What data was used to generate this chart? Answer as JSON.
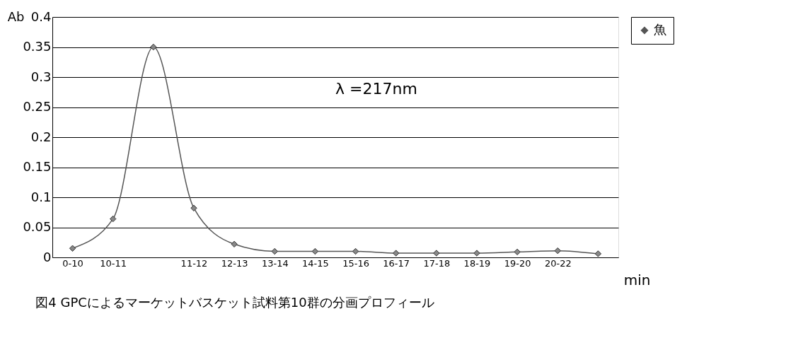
{
  "chart_data": {
    "type": "line",
    "title": "図4 GPCによるマーケットバスケット試料第10群の分画プロフィール",
    "xlabel": "min",
    "ylabel": "Ab",
    "categories": [
      "0-10",
      "10-11",
      null,
      "11-12",
      "12-13",
      "13-14",
      "14-15",
      "15-16",
      "16-17",
      "17-18",
      "18-19",
      "19-20",
      "20-22",
      null
    ],
    "series": [
      {
        "name": "魚",
        "color": "#555555",
        "values": [
          0.015,
          0.064,
          0.35,
          0.082,
          0.022,
          0.01,
          0.01,
          0.01,
          0.007,
          0.007,
          0.007,
          0.009,
          0.011,
          0.006
        ]
      }
    ],
    "ylim": [
      0,
      0.4
    ],
    "yticks": [
      0,
      0.05,
      0.1,
      0.15,
      0.2,
      0.25,
      0.3,
      0.35,
      0.4
    ],
    "grid": "y",
    "legend": "right",
    "marker": "diamond",
    "line_style": "solid",
    "annotations": [
      "λ =217nm"
    ]
  }
}
